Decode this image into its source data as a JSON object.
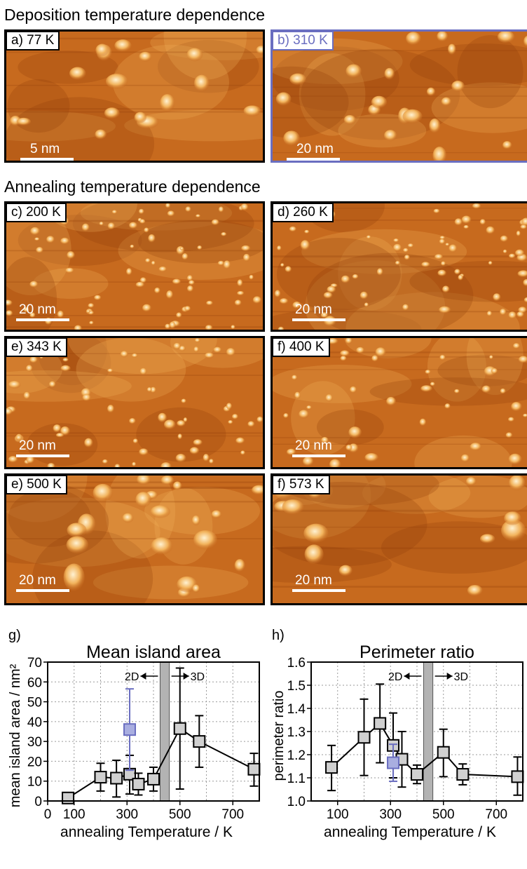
{
  "sections": {
    "deposition_title": "Deposition temperature dependence",
    "annealing_title": "Annealing temperature dependence"
  },
  "colors": {
    "stm_dark": "#8e3c08",
    "stm_mid": "#c76a1e",
    "stm_light": "#f2b35c",
    "stm_bright": "#fff2d2",
    "highlight_blue": "#6a6ec0",
    "marker_gray": "#d0d0d0",
    "marker_blue": "#a9aee0",
    "band_gray": "#b3b3b3"
  },
  "panels": [
    {
      "label": "a) 77 K",
      "scalebar": "5 nm"
    },
    {
      "label": "b) 310 K",
      "scalebar": "20 nm"
    },
    {
      "label": "c) 200 K",
      "scalebar": "20 nm"
    },
    {
      "label": "d) 260 K",
      "scalebar": "20 nm"
    },
    {
      "label": "e) 343 K",
      "scalebar": "20 nm"
    },
    {
      "label": "f) 400 K",
      "scalebar": "20 nm"
    },
    {
      "label": "e) 500 K",
      "scalebar": "20 nm"
    },
    {
      "label": "f) 573 K",
      "scalebar": "20 nm"
    }
  ],
  "chart_data": [
    {
      "type": "line",
      "panel_label": "g)",
      "title": "Mean island area",
      "xlabel": "annealing Temperature / K",
      "ylabel": "mean island area / nm²",
      "xlim": [
        0,
        800
      ],
      "ylim": [
        0,
        70
      ],
      "x_ticks": [
        0,
        100,
        300,
        500,
        700
      ],
      "y_ticks": [
        0,
        10,
        20,
        30,
        40,
        50,
        60,
        70
      ],
      "grid": true,
      "band": {
        "x0": 425,
        "x1": 460,
        "left_text": "2D",
        "right_text": "3D"
      },
      "series": [
        {
          "style": "annealed",
          "points": [
            {
              "x": 77,
              "y": 1.5,
              "lo": 0,
              "hi": 3
            },
            {
              "x": 200,
              "y": 12,
              "lo": 5,
              "hi": 19
            },
            {
              "x": 260,
              "y": 11.5,
              "lo": 2,
              "hi": 20.5
            },
            {
              "x": 310,
              "y": 13.5,
              "lo": 3.5,
              "hi": 23
            },
            {
              "x": 343,
              "y": 8.5,
              "lo": 3,
              "hi": 14
            },
            {
              "x": 400,
              "y": 11,
              "lo": 5,
              "hi": 17
            },
            {
              "x": 500,
              "y": 36.5,
              "lo": 6,
              "hi": 67
            },
            {
              "x": 573,
              "y": 30,
              "lo": 17,
              "hi": 43
            },
            {
              "x": 780,
              "y": 16,
              "lo": 7.5,
              "hi": 24
            }
          ]
        },
        {
          "style": "deposited",
          "points": [
            {
              "x": 310,
              "y": 36,
              "lo": 15.5,
              "hi": 56.5
            }
          ]
        }
      ]
    },
    {
      "type": "line",
      "panel_label": "h)",
      "title": "Perimeter ratio",
      "xlabel": "annealing Temperature / K",
      "ylabel": "perimeter ratio",
      "xlim": [
        0,
        800
      ],
      "ylim": [
        1.0,
        1.6
      ],
      "x_ticks": [
        100,
        300,
        500,
        700
      ],
      "y_ticks": [
        1.0,
        1.1,
        1.2,
        1.3,
        1.4,
        1.5,
        1.6
      ],
      "grid": true,
      "band": {
        "x0": 425,
        "x1": 460,
        "left_text": "2D",
        "right_text": "3D"
      },
      "series": [
        {
          "style": "annealed",
          "points": [
            {
              "x": 77,
              "y": 1.145,
              "lo": 1.045,
              "hi": 1.24
            },
            {
              "x": 200,
              "y": 1.275,
              "lo": 1.11,
              "hi": 1.44
            },
            {
              "x": 260,
              "y": 1.335,
              "lo": 1.165,
              "hi": 1.505
            },
            {
              "x": 310,
              "y": 1.24,
              "lo": 1.1,
              "hi": 1.38
            },
            {
              "x": 343,
              "y": 1.18,
              "lo": 1.06,
              "hi": 1.3
            },
            {
              "x": 400,
              "y": 1.115,
              "lo": 1.075,
              "hi": 1.155
            },
            {
              "x": 500,
              "y": 1.21,
              "lo": 1.105,
              "hi": 1.31
            },
            {
              "x": 573,
              "y": 1.115,
              "lo": 1.07,
              "hi": 1.16
            },
            {
              "x": 780,
              "y": 1.105,
              "lo": 1.025,
              "hi": 1.19
            }
          ]
        },
        {
          "style": "deposited",
          "points": [
            {
              "x": 310,
              "y": 1.165,
              "lo": 1.085,
              "hi": 1.245
            }
          ]
        }
      ]
    }
  ]
}
